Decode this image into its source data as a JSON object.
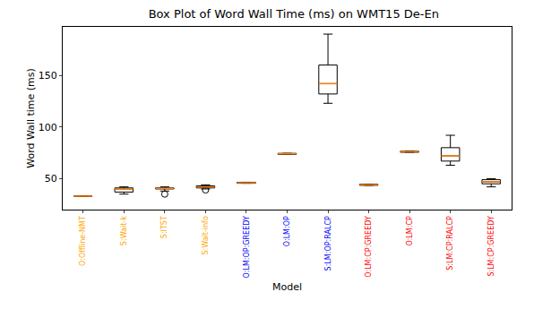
{
  "chart_data": {
    "type": "box",
    "title": "Box Plot of Word Wall Time (ms) on WMT15 De-En",
    "x_label": "Model",
    "y_label": "Word Wall time (ms)",
    "categories": [
      "O:Offline-NMT",
      "S:Wait-k",
      "S:ITST",
      "S:Wait-info",
      "O:LM:OP:GREEDY",
      "O:LM:OP",
      "S:LM:OP:RALCP",
      "O:LM:CP:GREEDY",
      "O:LM:CP",
      "S:LM:CP:RALCP",
      "S:LM:CP:GREEDY"
    ],
    "colors": [
      "#ffa500",
      "#ffa500",
      "#ffa500",
      "#ffa500",
      "#0000ff",
      "#0000ff",
      "#0000ff",
      "#ff0000",
      "#ff0000",
      "#ff0000",
      "#ff0000"
    ],
    "whisker_low": [
      33,
      35,
      38,
      40,
      45.5,
      73.5,
      123,
      43.5,
      75.5,
      63,
      42
    ],
    "q1": [
      33,
      37,
      40,
      41,
      45.5,
      73.5,
      132,
      43.5,
      75.5,
      67,
      45
    ],
    "median": [
      33,
      40,
      40.5,
      42,
      46,
      74,
      142,
      44,
      76,
      72,
      47
    ],
    "q3": [
      33,
      41,
      41,
      43,
      46.5,
      74.5,
      160,
      44.5,
      76.5,
      80,
      49
    ],
    "whisker_high": [
      33,
      42,
      42,
      44,
      46.5,
      74.5,
      190,
      44.5,
      76.5,
      92,
      50
    ],
    "outliers": [
      [],
      [],
      [
        35
      ],
      [
        39
      ],
      [],
      [],
      [],
      [],
      [],
      [],
      []
    ],
    "ylim": [
      20,
      197
    ],
    "yticks": [
      50,
      100,
      150
    ],
    "grid": false
  }
}
